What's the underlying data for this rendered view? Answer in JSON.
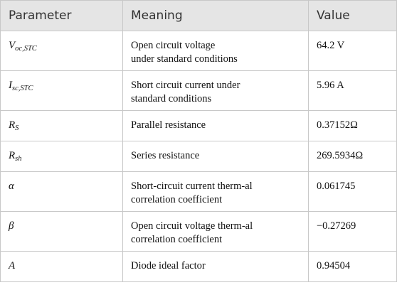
{
  "table": {
    "header": [
      "Parameter",
      "Meaning",
      "Value"
    ],
    "rows": [
      {
        "symbol": {
          "base": "V",
          "sub": "oc,STC"
        },
        "meaning": [
          "Open circuit voltage",
          "under standard conditions"
        ],
        "value": "64.2 V"
      },
      {
        "symbol": {
          "base": "I",
          "sub": "sc,STC"
        },
        "meaning": [
          "Short circuit current under",
          "standard conditions"
        ],
        "value": "5.96 A"
      },
      {
        "symbol": {
          "base": "R",
          "sub": "S"
        },
        "meaning": [
          "Parallel resistance"
        ],
        "value": "0.37152Ω"
      },
      {
        "symbol": {
          "base": "R",
          "sub": "sh"
        },
        "meaning": [
          "Series resistance"
        ],
        "value": "269.5934Ω"
      },
      {
        "symbol": {
          "base": "α"
        },
        "meaning": [
          "Short-circuit current therm-al",
          "correlation coefficient"
        ],
        "value": "0.061745"
      },
      {
        "symbol": {
          "base": "β"
        },
        "meaning": [
          "Open circuit voltage therm-al",
          "correlation coefficient"
        ],
        "value": "−0.27269"
      },
      {
        "symbol": {
          "base": "A"
        },
        "meaning": [
          "Diode ideal factor"
        ],
        "value": "0.94504"
      }
    ]
  }
}
